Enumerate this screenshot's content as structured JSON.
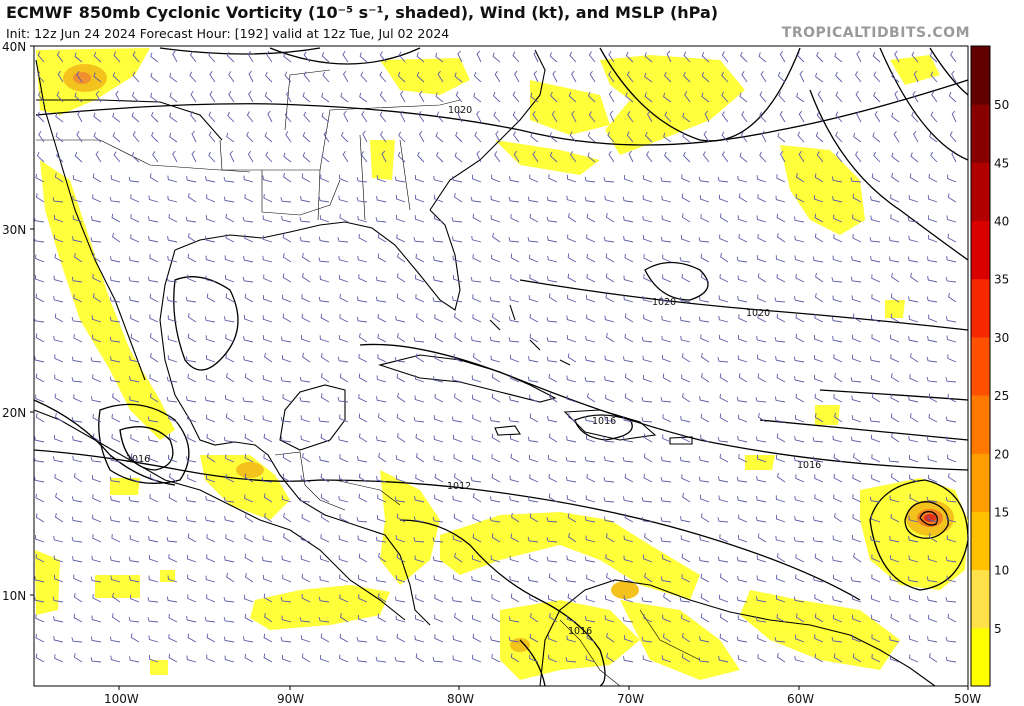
{
  "header": {
    "title": "ECMWF 850mb Cyclonic Vorticity (10⁻⁵ s⁻¹, shaded), Wind (kt), and MSLP (hPa)",
    "subtitle": "Init: 12z Jun 24 2024   Forecast Hour: [192]   valid at 12z Tue, Jul 02 2024",
    "brand": "TROPICALTIDBITS.COM"
  },
  "axes": {
    "lat_labels": [
      "40N",
      "30N",
      "20N",
      "10N"
    ],
    "lon_labels": [
      "100W",
      "90W",
      "80W",
      "70W",
      "60W",
      "50W"
    ]
  },
  "colorbar": {
    "ticks": [
      "5",
      "10",
      "15",
      "20",
      "25",
      "30",
      "35",
      "40",
      "45",
      "50"
    ],
    "colors": [
      "#ffff00",
      "#ffe14a",
      "#ffc000",
      "#ff9d00",
      "#ff7800",
      "#ff5000",
      "#f52800",
      "#d90000",
      "#b00000",
      "#880000",
      "#620000"
    ]
  },
  "isobar_labels": [
    "1020",
    "1020",
    "1020",
    "1016",
    "1016",
    "1016",
    "1012",
    "1016"
  ],
  "colors": {
    "vorticity_light": "#ffff30",
    "vorticity_mid": "#f3c21c",
    "vorticity_core": "#ee4a12",
    "coast": "#000000",
    "isobar": "#000000",
    "barb": "#5c5ca8"
  }
}
